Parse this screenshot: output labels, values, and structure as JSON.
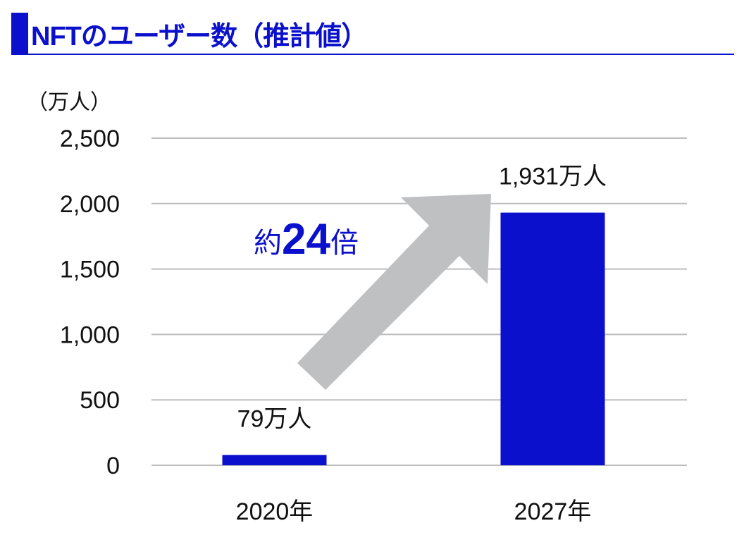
{
  "header": {
    "title": "NFTのユーザー数（推計値）"
  },
  "annotation": {
    "prefix": "約",
    "number": "24",
    "suffix": "倍"
  },
  "colors": {
    "accent": "#0a10cc",
    "arrow": "#bfc0c2",
    "grid": "#bdbdbd"
  },
  "chart_data": {
    "type": "bar",
    "title": "NFTのユーザー数（推計値）",
    "ylabel": "（万人）",
    "categories": [
      "2020年",
      "2027年"
    ],
    "values": [
      79,
      1931
    ],
    "data_labels": [
      "79万人",
      "1,931万人"
    ],
    "ylim": [
      0,
      2500
    ],
    "yticks": [
      0,
      500,
      1000,
      1500,
      2000,
      2500
    ],
    "ytick_labels": [
      "0",
      "500",
      "1,000",
      "1,500",
      "2,000",
      "2,500"
    ],
    "grid": true
  }
}
